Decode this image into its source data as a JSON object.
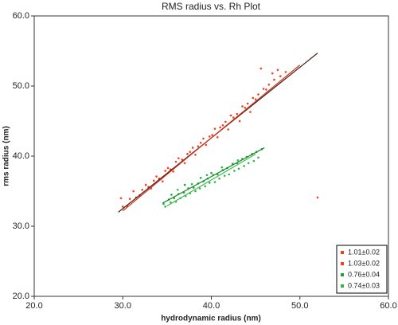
{
  "chart_data": {
    "type": "scatter",
    "title": "RMS radius vs. Rh Plot",
    "x_label": "hydrodynamic radius (nm)",
    "y_label": "rms radius (nm)",
    "xlim": [
      20,
      60
    ],
    "ylim": [
      20,
      60
    ],
    "xticks": [
      {
        "value": 20,
        "label": "20.0"
      },
      {
        "value": 30,
        "label": "30.0"
      },
      {
        "value": 40,
        "label": "40.0"
      },
      {
        "value": 50,
        "label": "50.0"
      },
      {
        "value": 60,
        "label": "60.0"
      }
    ],
    "yticks": [
      {
        "value": 20,
        "label": "20.0"
      },
      {
        "value": 30,
        "label": "30.0"
      },
      {
        "value": 40,
        "label": "40.0"
      },
      {
        "value": 50,
        "label": "50.0"
      },
      {
        "value": 60,
        "label": "60.0"
      }
    ],
    "legend": "lower right",
    "series": [
      {
        "name": "1.01±0.02",
        "color": "#e8431f",
        "line_color": "#4a1a10",
        "x": [
          30.0,
          30.8,
          31.5,
          32.2,
          32.9,
          33.5,
          34.1,
          34.8,
          35.4,
          36.0,
          36.7,
          37.3,
          37.9,
          38.5,
          39.1,
          39.8,
          40.4,
          41.0,
          41.6,
          42.2,
          42.9,
          43.5,
          44.1,
          44.7,
          45.3,
          45.9,
          46.5,
          47.1,
          47.8,
          48.4
        ],
        "values": [
          32.8,
          33.9,
          34.1,
          35.2,
          35.6,
          36.5,
          36.8,
          37.9,
          38.1,
          39.2,
          39.5,
          40.3,
          41.2,
          41.4,
          42.5,
          42.8,
          43.9,
          44.1,
          44.9,
          45.8,
          46.0,
          47.1,
          47.5,
          48.3,
          48.8,
          49.6,
          50.2,
          50.9,
          51.4,
          52.0
        ],
        "fit_x": [
          29.5,
          52
        ],
        "fit_y": [
          32,
          54.7
        ]
      },
      {
        "name": "1.03±0.02",
        "color": "#ff3b1f",
        "line_color": "#c8321c",
        "x": [
          29.8,
          30.5,
          31.2,
          31.9,
          32.6,
          33.2,
          33.8,
          34.5,
          35.1,
          35.7,
          36.3,
          37.0,
          37.6,
          38.2,
          38.8,
          39.4,
          40.1,
          40.7,
          41.3,
          41.9,
          42.5,
          43.2,
          43.8,
          44.4,
          45.0,
          45.6,
          46.2,
          46.9,
          47.5,
          52.0
        ],
        "values": [
          34.0,
          32.9,
          35.0,
          34.4,
          35.9,
          35.4,
          37.1,
          36.4,
          38.3,
          37.8,
          39.7,
          39.0,
          40.6,
          40.2,
          41.9,
          41.6,
          43.0,
          42.7,
          44.4,
          43.8,
          45.5,
          45.0,
          46.9,
          46.3,
          48.1,
          52.5,
          49.5,
          51.8,
          52.3,
          34.1
        ],
        "fit_x": [
          30,
          50
        ],
        "fit_y": [
          32.2,
          53
        ]
      },
      {
        "name": "0.76±0.04",
        "color": "#22a33a",
        "line_color": "#1b8a2e",
        "x": [
          34.6,
          35.2,
          35.8,
          36.3,
          36.9,
          37.4,
          38.0,
          38.5,
          39.1,
          39.6,
          40.2,
          40.7,
          41.3,
          41.8,
          42.4,
          42.9,
          43.5,
          44.0,
          44.6,
          45.1,
          45.7,
          35.5,
          37.0,
          38.8,
          40.0
        ],
        "values": [
          33.2,
          33.8,
          34.0,
          34.6,
          34.8,
          35.4,
          35.5,
          36.1,
          36.4,
          36.8,
          37.3,
          37.4,
          38.0,
          38.3,
          38.9,
          39.0,
          39.6,
          39.9,
          40.3,
          40.6,
          41.0,
          34.5,
          35.9,
          36.9,
          37.6
        ],
        "fit_x": [
          34.5,
          46
        ],
        "fit_y": [
          33.3,
          41.2
        ]
      },
      {
        "name": "0.74±0.03",
        "color": "#2fb845",
        "line_color": "#3fbf4f",
        "x": [
          34.8,
          35.4,
          36.0,
          36.5,
          37.1,
          37.6,
          38.2,
          38.7,
          39.3,
          39.8,
          40.4,
          40.9,
          41.5,
          42.0,
          42.6,
          43.1,
          43.7,
          44.2,
          44.8,
          45.3,
          36.2,
          37.8,
          39.5,
          41.2,
          43.0
        ],
        "values": [
          32.8,
          33.4,
          33.5,
          34.0,
          34.3,
          34.7,
          35.0,
          35.4,
          35.7,
          36.2,
          36.3,
          36.8,
          37.2,
          37.4,
          37.9,
          38.2,
          38.6,
          39.0,
          39.3,
          39.8,
          35.2,
          36.0,
          37.3,
          38.4,
          39.4
        ],
        "fit_x": [
          35,
          45
        ],
        "fit_y": [
          32.9,
          40.3
        ]
      }
    ]
  }
}
